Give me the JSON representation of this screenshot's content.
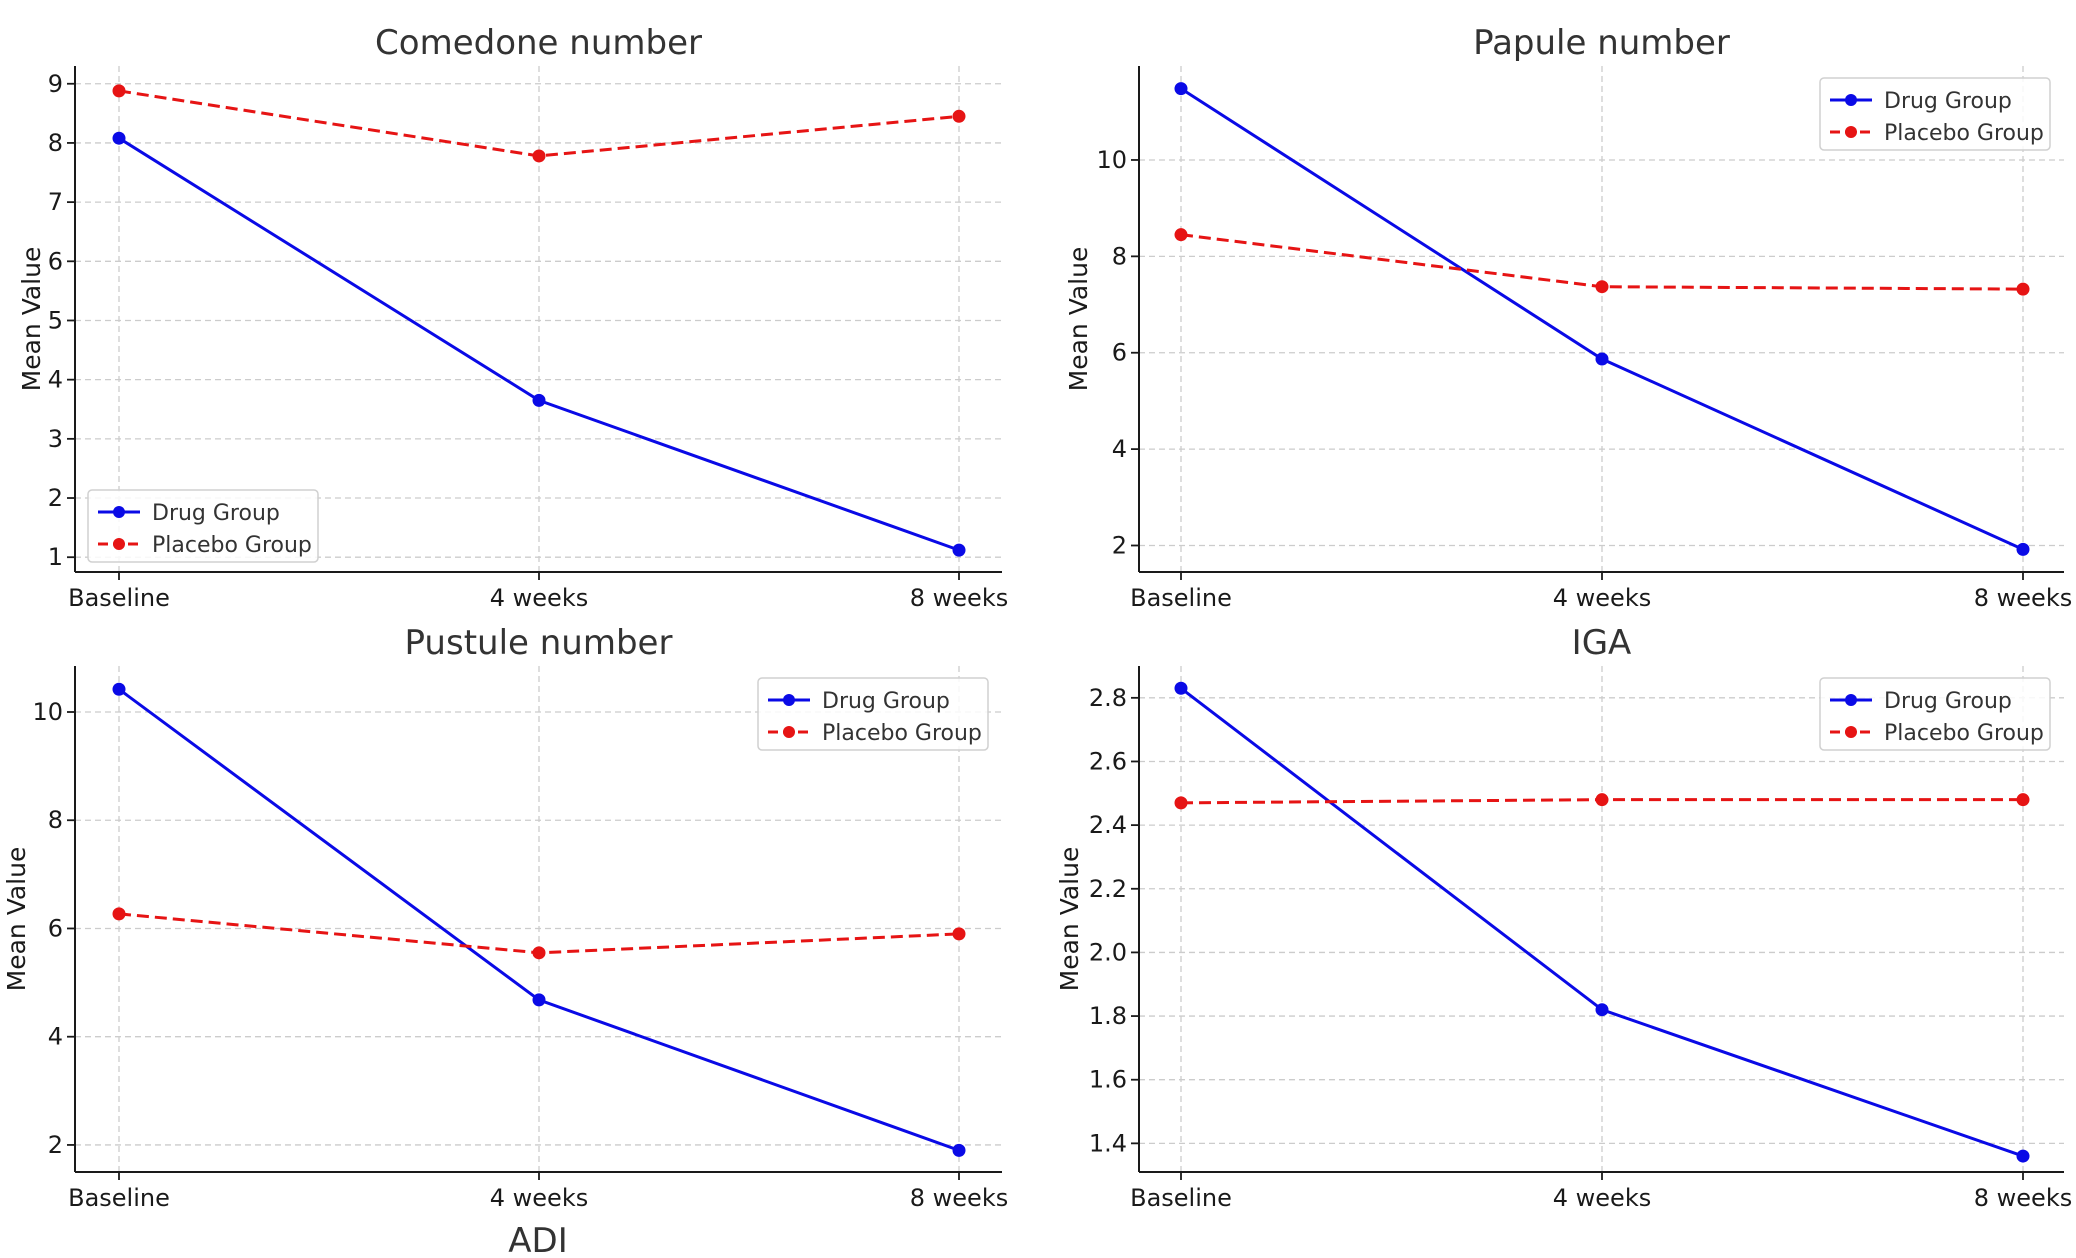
{
  "colors": {
    "drug": "#0a0ae6",
    "placebo": "#e61414",
    "grid": "#cccccc",
    "text": "#333333"
  },
  "chart_data": [
    {
      "type": "line",
      "title": "Comedone number",
      "ylabel": "Mean Value",
      "categories": [
        "Baseline",
        "4 weeks",
        "8 weeks"
      ],
      "ylim": [
        0.75,
        9.3
      ],
      "yticks": [
        1,
        2,
        3,
        4,
        5,
        6,
        7,
        8,
        9
      ],
      "grid": true,
      "legend_position": "lower-left",
      "series": [
        {
          "name": "Drug Group",
          "values": [
            8.08,
            3.65,
            1.12
          ],
          "style": "solid",
          "color": "#0a0ae6"
        },
        {
          "name": "Placebo Group",
          "values": [
            8.88,
            7.78,
            8.45
          ],
          "style": "dashed",
          "color": "#e61414"
        }
      ]
    },
    {
      "type": "line",
      "title": "Papule number",
      "ylabel": "Mean Value",
      "categories": [
        "Baseline",
        "4 weeks",
        "8 weeks"
      ],
      "ylim": [
        1.45,
        11.95
      ],
      "yticks": [
        2,
        4,
        6,
        8,
        10
      ],
      "grid": true,
      "legend_position": "upper-right",
      "series": [
        {
          "name": "Drug Group",
          "values": [
            11.48,
            5.87,
            1.92
          ],
          "style": "solid",
          "color": "#0a0ae6"
        },
        {
          "name": "Placebo Group",
          "values": [
            8.45,
            7.37,
            7.32
          ],
          "style": "dashed",
          "color": "#e61414"
        }
      ]
    },
    {
      "type": "line",
      "title": "Pustule number",
      "ylabel": "Mean Value",
      "categories": [
        "Baseline",
        "4 weeks",
        "8 weeks"
      ],
      "ylim": [
        1.5,
        10.85
      ],
      "yticks": [
        2,
        4,
        6,
        8,
        10
      ],
      "grid": true,
      "legend_position": "upper-right",
      "series": [
        {
          "name": "Drug Group",
          "values": [
            10.42,
            4.68,
            1.9
          ],
          "style": "solid",
          "color": "#0a0ae6"
        },
        {
          "name": "Placebo Group",
          "values": [
            6.27,
            5.55,
            5.9
          ],
          "style": "dashed",
          "color": "#e61414"
        }
      ]
    },
    {
      "type": "line",
      "title": "IGA",
      "ylabel": "Mean Value",
      "categories": [
        "Baseline",
        "4 weeks",
        "8 weeks"
      ],
      "ylim": [
        1.31,
        2.9
      ],
      "yticks": [
        1.4,
        1.6,
        1.8,
        2.0,
        2.2,
        2.4,
        2.6,
        2.8
      ],
      "ytick_labels": [
        "1.4",
        "1.6",
        "1.8",
        "2.0",
        "2.2",
        "2.4",
        "2.6",
        "2.8"
      ],
      "grid": true,
      "legend_position": "upper-right",
      "series": [
        {
          "name": "Drug Group",
          "values": [
            2.83,
            1.82,
            1.36
          ],
          "style": "solid",
          "color": "#0a0ae6"
        },
        {
          "name": "Placebo Group",
          "values": [
            2.47,
            2.48,
            2.48
          ],
          "style": "dashed",
          "color": "#e61414"
        }
      ]
    }
  ],
  "footer_label": "ADI"
}
